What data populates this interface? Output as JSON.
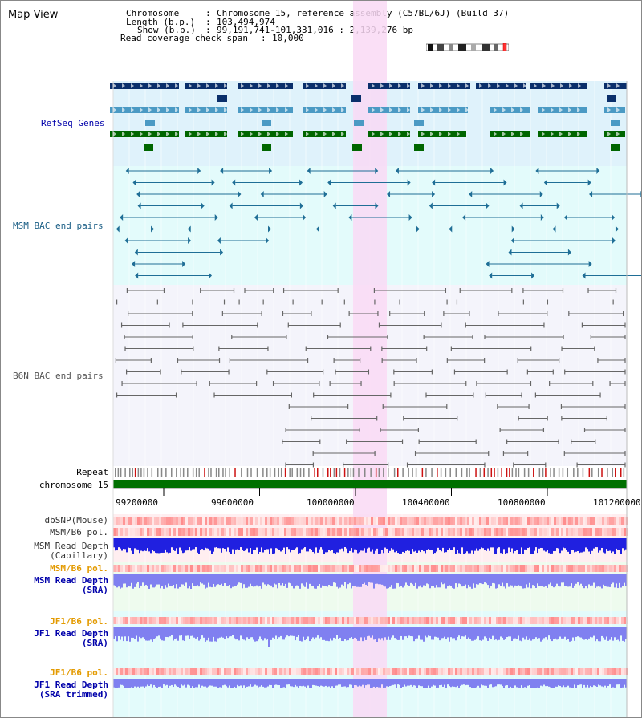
{
  "window_title": "Map View",
  "info": {
    "chromosome_label": "Chromosome",
    "chromosome_value": "Chromosome 15, reference assembly (C57BL/6J) (Build 37)",
    "length_label": "Length (b.p.)",
    "length_value": "103,494,974",
    "show_label": "Show (b.p.)",
    "show_value": "99,191,741-101,331,016 : 2,139,276 bp",
    "coverage_label": "Read coverage check span",
    "coverage_value": "10,000"
  },
  "tracks": {
    "refseq": "RefSeq Genes",
    "msm_bac": "MSM BAC end pairs",
    "b6n_bac": "B6N BAC end pairs",
    "repeat": "Repeat",
    "chromosome": "chromosome 15",
    "dbsnp": "dbSNP(Mouse)",
    "msm_b6_pol_1": "MSM/B6 pol.",
    "msm_depth_cap_1": "MSM Read Depth",
    "msm_depth_cap_2": "(Capillary)",
    "msm_b6_pol_2": "MSM/B6 pol.",
    "msm_depth_sra_1": "MSM Read Depth",
    "msm_depth_sra_2": "(SRA)",
    "jf1_pol_1": "JF1/B6 pol.",
    "jf1_depth_sra_1": "JF1 Read Depth",
    "jf1_depth_sra_2": "(SRA)",
    "jf1_pol_2": "JF1/B6 pol.",
    "jf1_depth_trim_1": "JF1 Read Depth",
    "jf1_depth_trim_2": "(SRA trimmed)"
  },
  "axis_ticks": [
    "99200000",
    "99600000",
    "100000000",
    "100400000",
    "100800000",
    "101200000"
  ],
  "colors": {
    "refseq_bg": "#dff2fb",
    "msm_bg": "#e3fbfb",
    "b6n_bg": "#f4f4fb",
    "highlight": "#f9d9f4",
    "refseq_dark": "#0a2f6b",
    "refseq_mid": "#4b9ac4",
    "refseq_green": "#006600",
    "msm_line": "#1f6e96",
    "b6n_line": "#666666",
    "chromosome": "#007000",
    "label_blue": "#0000aa",
    "label_teal": "#1a5e85",
    "label_orange": "#e39a00",
    "depth_blue": "#2020e0",
    "depth_light": "#8080f0",
    "pol_red": "#ff4040"
  }
}
